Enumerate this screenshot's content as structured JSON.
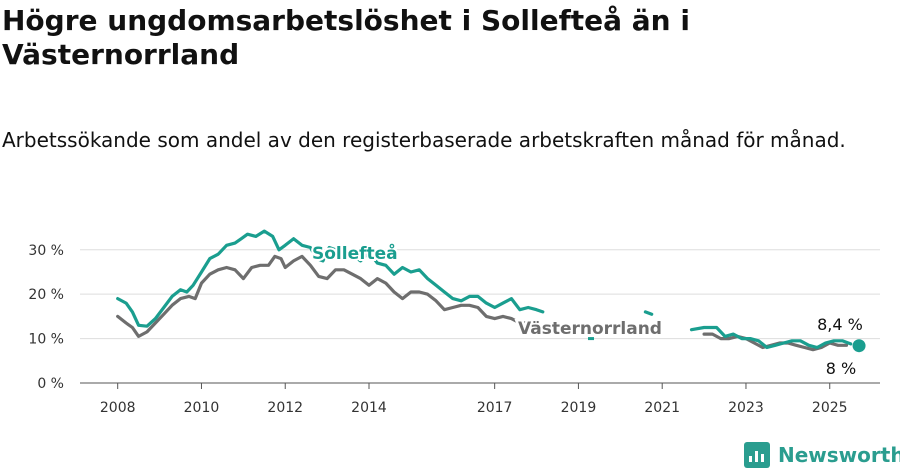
{
  "title": "Högre ungdomsarbetslöshet i Sollefteå än i Västernorrland",
  "subtitle": "Arbetssökande som andel av den registerbaserade arbetskraften månad för månad.",
  "brand": "Newsworthy",
  "colors": {
    "sollefteå": "#1a9e8f",
    "västernorrland": "#6e6e6e",
    "grid": "#dddddd",
    "axis": "#555555"
  },
  "chart_data": {
    "type": "line",
    "x_ticks": [
      "2008",
      "2010",
      "2012",
      "2014",
      "2017",
      "2019",
      "2021",
      "2023",
      "2025"
    ],
    "x_tick_values": [
      2008,
      2010,
      2012,
      2014,
      2017,
      2019,
      2021,
      2023,
      2025
    ],
    "y_ticks": [
      "0 %",
      "10 %",
      "20 %",
      "30 %"
    ],
    "y_tick_values": [
      0,
      10,
      20,
      30
    ],
    "xlim": [
      2007.1,
      2026.2
    ],
    "ylim": [
      0,
      34
    ],
    "grid": true,
    "series": [
      {
        "name": "Sollefteå",
        "color": "#1a9e8f",
        "end_label": "8,4 %",
        "points": [
          [
            2008.0,
            19.0
          ],
          [
            2008.2,
            18.0
          ],
          [
            2008.35,
            16.0
          ],
          [
            2008.5,
            13.0
          ],
          [
            2008.7,
            12.8
          ],
          [
            2008.9,
            14.5
          ],
          [
            2009.1,
            17.0
          ],
          [
            2009.3,
            19.5
          ],
          [
            2009.5,
            21.0
          ],
          [
            2009.65,
            20.5
          ],
          [
            2009.8,
            22.0
          ],
          [
            2010.0,
            25.0
          ],
          [
            2010.2,
            28.0
          ],
          [
            2010.4,
            29.0
          ],
          [
            2010.6,
            31.0
          ],
          [
            2010.8,
            31.5
          ],
          [
            2010.95,
            32.5
          ],
          [
            2011.1,
            33.5
          ],
          [
            2011.3,
            33.0
          ],
          [
            2011.5,
            34.2
          ],
          [
            2011.7,
            33.0
          ],
          [
            2011.85,
            30.0
          ],
          [
            2012.0,
            31.0
          ],
          [
            2012.2,
            32.5
          ],
          [
            2012.4,
            31.0
          ],
          [
            2012.6,
            30.5
          ],
          [
            2012.75,
            28.0
          ],
          [
            2012.9,
            27.5
          ],
          [
            2013.05,
            30.5
          ],
          [
            2013.2,
            30.0
          ],
          [
            2013.5,
            29.5
          ],
          [
            2013.8,
            27.5
          ],
          [
            2014.0,
            29.5
          ],
          [
            2014.2,
            27.0
          ],
          [
            2014.4,
            26.5
          ],
          [
            2014.6,
            24.5
          ],
          [
            2014.8,
            26.0
          ],
          [
            2015.0,
            25.0
          ],
          [
            2015.2,
            25.5
          ],
          [
            2015.4,
            23.5
          ],
          [
            2015.6,
            22.0
          ],
          [
            2015.8,
            20.5
          ],
          [
            2016.0,
            19.0
          ],
          [
            2016.2,
            18.5
          ],
          [
            2016.4,
            19.5
          ],
          [
            2016.6,
            19.5
          ],
          [
            2016.8,
            18.0
          ],
          [
            2017.0,
            17.0
          ],
          [
            2017.2,
            18.0
          ],
          [
            2017.4,
            19.0
          ],
          [
            2017.6,
            16.5
          ],
          [
            2017.8,
            17.0
          ],
          [
            2018.0,
            16.5
          ],
          [
            2018.15,
            16.0
          ],
          [
            2019.3,
            10.0
          ],
          [
            2020.6,
            16.0
          ],
          [
            2020.75,
            15.5
          ],
          [
            2021.7,
            12.0
          ],
          [
            2022.0,
            12.5
          ],
          [
            2022.3,
            12.5
          ],
          [
            2022.5,
            10.5
          ],
          [
            2022.7,
            11.0
          ],
          [
            2022.9,
            10.0
          ],
          [
            2023.1,
            10.0
          ],
          [
            2023.3,
            9.5
          ],
          [
            2023.5,
            8.0
          ],
          [
            2023.7,
            8.5
          ],
          [
            2023.9,
            9.0
          ],
          [
            2024.1,
            9.5
          ],
          [
            2024.3,
            9.5
          ],
          [
            2024.5,
            8.5
          ],
          [
            2024.7,
            8.0
          ],
          [
            2024.9,
            9.0
          ],
          [
            2025.1,
            9.5
          ],
          [
            2025.3,
            9.5
          ],
          [
            2025.5,
            8.8
          ],
          [
            2025.7,
            8.4
          ]
        ]
      },
      {
        "name": "Västernorrland",
        "color": "#6e6e6e",
        "end_label": "8 %",
        "points": [
          [
            2008.0,
            15.0
          ],
          [
            2008.2,
            13.5
          ],
          [
            2008.35,
            12.5
          ],
          [
            2008.5,
            10.5
          ],
          [
            2008.7,
            11.5
          ],
          [
            2008.9,
            13.5
          ],
          [
            2009.1,
            15.5
          ],
          [
            2009.3,
            17.5
          ],
          [
            2009.5,
            19.0
          ],
          [
            2009.7,
            19.5
          ],
          [
            2009.85,
            19.0
          ],
          [
            2010.0,
            22.5
          ],
          [
            2010.2,
            24.5
          ],
          [
            2010.4,
            25.5
          ],
          [
            2010.6,
            26.0
          ],
          [
            2010.8,
            25.5
          ],
          [
            2011.0,
            23.5
          ],
          [
            2011.2,
            26.0
          ],
          [
            2011.4,
            26.5
          ],
          [
            2011.6,
            26.5
          ],
          [
            2011.75,
            28.5
          ],
          [
            2011.9,
            28.0
          ],
          [
            2012.0,
            26.0
          ],
          [
            2012.2,
            27.5
          ],
          [
            2012.4,
            28.5
          ],
          [
            2012.6,
            26.5
          ],
          [
            2012.8,
            24.0
          ],
          [
            2013.0,
            23.5
          ],
          [
            2013.2,
            25.5
          ],
          [
            2013.4,
            25.5
          ],
          [
            2013.6,
            24.5
          ],
          [
            2013.8,
            23.5
          ],
          [
            2014.0,
            22.0
          ],
          [
            2014.2,
            23.5
          ],
          [
            2014.4,
            22.5
          ],
          [
            2014.6,
            20.5
          ],
          [
            2014.8,
            19.0
          ],
          [
            2015.0,
            20.5
          ],
          [
            2015.2,
            20.5
          ],
          [
            2015.4,
            20.0
          ],
          [
            2015.6,
            18.5
          ],
          [
            2015.8,
            16.5
          ],
          [
            2016.0,
            17.0
          ],
          [
            2016.2,
            17.5
          ],
          [
            2016.4,
            17.5
          ],
          [
            2016.6,
            17.0
          ],
          [
            2016.8,
            15.0
          ],
          [
            2017.0,
            14.5
          ],
          [
            2017.2,
            15.0
          ],
          [
            2017.4,
            14.5
          ],
          [
            2017.6,
            13.5
          ],
          [
            2017.8,
            13.5
          ],
          [
            2018.0,
            14.0
          ],
          [
            2022.0,
            11.0
          ],
          [
            2022.2,
            11.0
          ],
          [
            2022.4,
            10.0
          ],
          [
            2022.6,
            10.0
          ],
          [
            2022.8,
            10.5
          ],
          [
            2023.0,
            10.0
          ],
          [
            2023.2,
            9.0
          ],
          [
            2023.4,
            8.0
          ],
          [
            2023.6,
            8.5
          ],
          [
            2023.8,
            9.0
          ],
          [
            2024.0,
            9.0
          ],
          [
            2024.2,
            8.5
          ],
          [
            2024.4,
            8.0
          ],
          [
            2024.6,
            7.5
          ],
          [
            2024.8,
            8.0
          ],
          [
            2025.0,
            9.0
          ],
          [
            2025.2,
            8.5
          ],
          [
            2025.4,
            8.5
          ],
          [
            2025.6,
            7.5
          ],
          [
            2025.7,
            8.0
          ]
        ]
      }
    ],
    "segments": {
      "Sollefteå": [
        [
          0,
          53
        ],
        [
          54,
          54
        ],
        [
          55,
          56
        ],
        [
          57,
          75
        ]
      ],
      "Västernorrland": [
        [
          0,
          52
        ],
        [
          53,
          70
        ]
      ]
    }
  }
}
